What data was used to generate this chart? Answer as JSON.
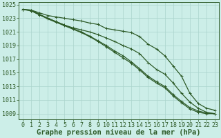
{
  "background_color": "#cceee8",
  "grid_color": "#aad4cc",
  "line_color": "#2d5a27",
  "marker_color": "#2d5a27",
  "xlabel": "Graphe pression niveau de la mer (hPa)",
  "xlabel_fontsize": 7.5,
  "yticks": [
    1009,
    1011,
    1013,
    1015,
    1017,
    1019,
    1021,
    1023,
    1025
  ],
  "ylabel_tick_labels": [
    "1009",
    "1011",
    "1013",
    "1015",
    "1017",
    "1019",
    "1021",
    "1023",
    "1025"
  ],
  "ylim": [
    1008.2,
    1025.4
  ],
  "xlim": [
    -0.5,
    23.5
  ],
  "xticks": [
    0,
    1,
    2,
    3,
    4,
    5,
    6,
    7,
    8,
    9,
    10,
    11,
    12,
    13,
    14,
    15,
    16,
    17,
    18,
    19,
    20,
    21,
    22,
    23
  ],
  "series": [
    [
      1024.3,
      1024.2,
      1023.8,
      1023.4,
      1023.2,
      1023.0,
      1022.8,
      1022.6,
      1022.3,
      1022.1,
      1021.5,
      1021.3,
      1021.1,
      1020.9,
      1020.3,
      1019.2,
      1018.5,
      1017.5,
      1016.0,
      1014.5,
      1012.0,
      1010.5,
      1009.8,
      1009.5
    ],
    [
      1024.3,
      1024.2,
      1023.6,
      1023.0,
      1022.5,
      1022.0,
      1021.6,
      1021.3,
      1021.0,
      1020.6,
      1020.1,
      1019.6,
      1019.0,
      1018.5,
      1017.8,
      1016.5,
      1015.5,
      1014.8,
      1013.5,
      1012.0,
      1010.7,
      1009.8,
      1009.2,
      1009.0
    ],
    [
      1024.3,
      1024.1,
      1023.5,
      1023.0,
      1022.5,
      1022.0,
      1021.5,
      1021.0,
      1020.4,
      1019.7,
      1019.0,
      1018.2,
      1017.5,
      1016.6,
      1015.6,
      1014.5,
      1013.7,
      1013.0,
      1011.8,
      1010.8,
      1009.9,
      1009.4,
      1009.1,
      1009.0
    ],
    [
      1024.3,
      1024.1,
      1023.5,
      1022.9,
      1022.4,
      1021.9,
      1021.4,
      1020.9,
      1020.3,
      1019.6,
      1018.8,
      1018.0,
      1017.2,
      1016.4,
      1015.4,
      1014.3,
      1013.5,
      1012.8,
      1011.6,
      1010.6,
      1009.7,
      1009.2,
      1009.0,
      1009.0
    ]
  ],
  "tick_fontsize": 6.0,
  "marker_size": 2.5,
  "linewidth": 0.9
}
